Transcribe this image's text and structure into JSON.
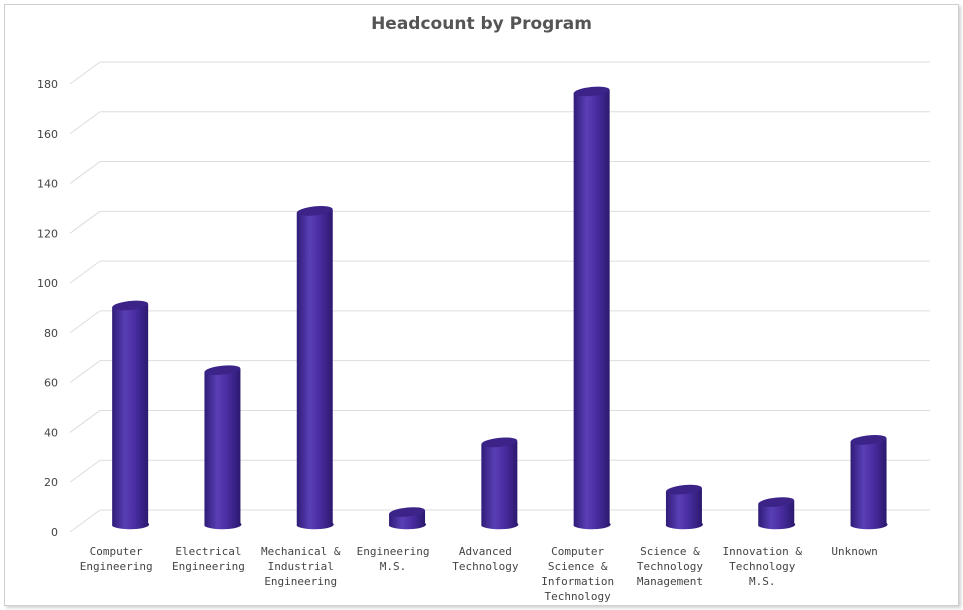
{
  "chart_data": {
    "type": "bar",
    "title": "Headcount by Program",
    "xlabel": "",
    "ylabel": "",
    "categories": [
      [
        "Computer",
        "Engineering"
      ],
      [
        "Electrical",
        "Engineering"
      ],
      [
        "Mechanical &",
        "Industrial",
        "Engineering"
      ],
      [
        "Engineering",
        "M.S."
      ],
      [
        "Advanced",
        "Technology"
      ],
      [
        "Computer",
        "Science &",
        "Information",
        "Technology"
      ],
      [
        "Science &",
        "Technology",
        "Management"
      ],
      [
        "Innovation &",
        "Technology",
        "M.S."
      ],
      [
        "Unknown"
      ]
    ],
    "values": [
      88,
      62,
      126,
      5,
      33,
      174,
      14,
      9,
      34
    ],
    "ylim": [
      0,
      180
    ],
    "yticks": [
      0,
      20,
      40,
      60,
      80,
      100,
      120,
      140,
      160,
      180
    ],
    "grid": true,
    "legend": "none",
    "colors": {
      "bar_light": "#5a3fb0",
      "bar_mid": "#4a2c9f",
      "bar_dark": "#2c1a6e",
      "bar_top": "#3b2388",
      "grid": "#dddddd"
    }
  }
}
